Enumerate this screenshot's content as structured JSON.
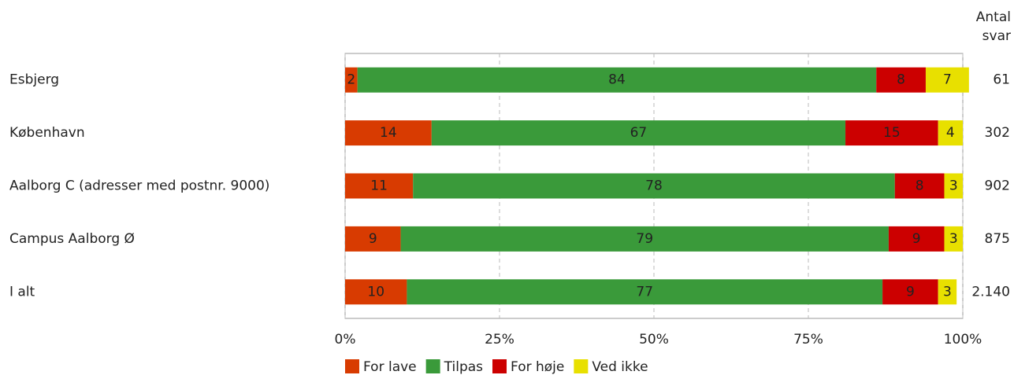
{
  "chart_data": {
    "type": "stacked-bar-horizontal",
    "categories": [
      "Esbjerg",
      "København",
      "Aalborg C (adresser med postnr. 9000)",
      "Campus Aalborg Ø",
      "I alt"
    ],
    "series": [
      {
        "name": "For lave",
        "color": "#d83b01",
        "values": [
          2,
          14,
          11,
          9,
          10
        ]
      },
      {
        "name": "Tilpas",
        "color": "#3a9a3a",
        "values": [
          84,
          67,
          78,
          79,
          77
        ]
      },
      {
        "name": "For høje",
        "color": "#cc0000",
        "values": [
          8,
          15,
          8,
          9,
          9
        ]
      },
      {
        "name": "Ved ikke",
        "color": "#e8e000",
        "values": [
          7,
          4,
          3,
          3,
          3
        ]
      }
    ],
    "xlim": [
      0,
      100
    ],
    "xticks": [
      {
        "value": 0,
        "label": "0%"
      },
      {
        "value": 25,
        "label": "25%"
      },
      {
        "value": 50,
        "label": "50%"
      },
      {
        "value": 75,
        "label": "75%"
      },
      {
        "value": 100,
        "label": "100%"
      }
    ],
    "grid": true,
    "answers": {
      "title": "Antal svar",
      "values": [
        61,
        302,
        902,
        875,
        2140
      ],
      "value_labels": [
        "61",
        "302",
        "902",
        "875",
        "2.140"
      ]
    }
  }
}
